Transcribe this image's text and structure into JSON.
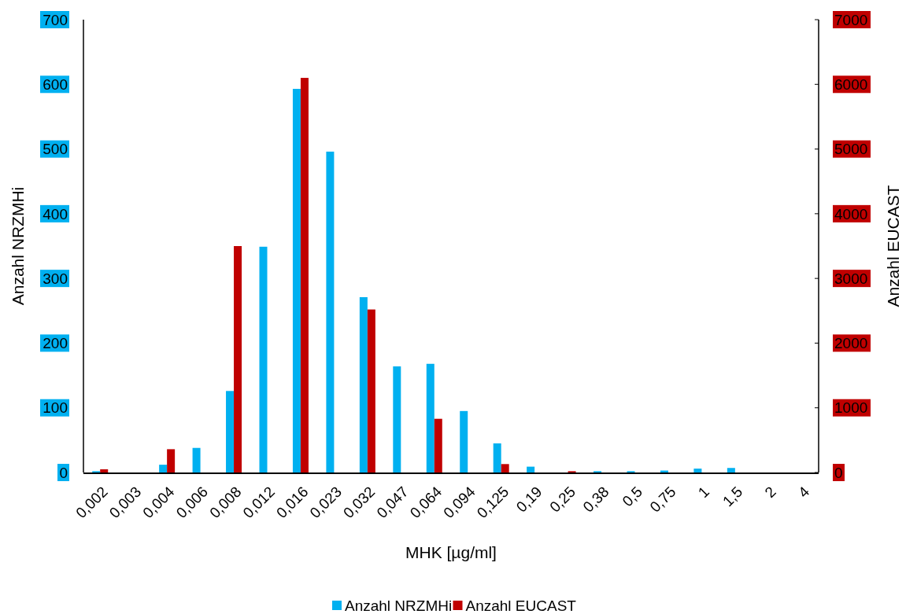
{
  "chart_data": {
    "type": "bar",
    "xlabel": "MHK [µg/ml]",
    "ylabel": "Anzahl NRZMHi",
    "y2label": "Anzahl EUCAST",
    "categories": [
      "0,002",
      "0,003",
      "0,004",
      "0,006",
      "0,008",
      "0,012",
      "0,016",
      "0,023",
      "0,032",
      "0,047",
      "0,064",
      "0,094",
      "0,125",
      "0,19",
      "0,25",
      "0,38",
      "0,5",
      "0,75",
      "1",
      "1,5",
      "2",
      "4"
    ],
    "series": [
      {
        "name": "Anzahl NRZMHi",
        "color": "#00b0f0",
        "values": [
          2,
          null,
          12,
          38,
          126,
          349,
          593,
          496,
          271,
          164,
          168,
          95,
          45,
          9,
          0,
          2,
          2,
          3,
          6,
          7,
          null,
          0
        ]
      },
      {
        "name": "Anzahl EUCAST",
        "color": "#c00000",
        "axis": "y2",
        "values": [
          50,
          0,
          360,
          0,
          3500,
          0,
          6100,
          0,
          2520,
          0,
          830,
          0,
          130,
          0,
          20,
          0,
          0,
          0,
          0,
          0,
          0,
          0
        ]
      }
    ],
    "ylim": [
      0,
      700
    ],
    "yticks": [
      0,
      100,
      200,
      300,
      400,
      500,
      600,
      700
    ],
    "y2lim": [
      0,
      7000
    ],
    "y2ticks": [
      0,
      1000,
      2000,
      3000,
      4000,
      5000,
      6000,
      7000
    ],
    "grid": false,
    "legend": "bottom"
  }
}
